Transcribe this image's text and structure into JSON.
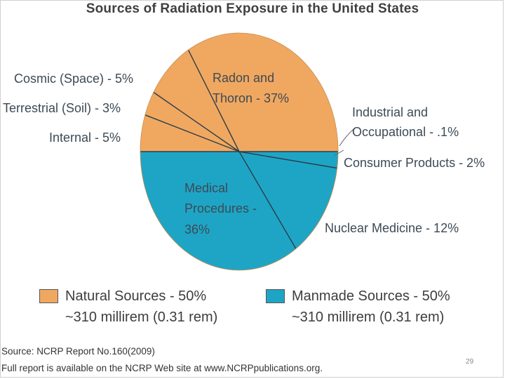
{
  "chart_data": {
    "type": "pie",
    "title": "Sources of Radiation Exposure in the United States",
    "slices": [
      {
        "label": "Radon and Thoron - 37%",
        "value": 37,
        "group": "natural"
      },
      {
        "label": "Cosmic (Space) - 5%",
        "value": 5,
        "group": "natural"
      },
      {
        "label": "Terrestrial (Soil) - 3%",
        "value": 3,
        "group": "natural"
      },
      {
        "label": "Internal - 5%",
        "value": 5,
        "group": "natural"
      },
      {
        "label": "Medical Procedures - 36%",
        "value": 36,
        "group": "manmade"
      },
      {
        "label": "Nuclear Medicine - 12%",
        "value": 12,
        "group": "manmade"
      },
      {
        "label": "Consumer Products - 2%",
        "value": 2,
        "group": "manmade"
      },
      {
        "label": "Industrial and Occupational - .1%",
        "value": 0.1,
        "group": "manmade"
      }
    ],
    "legend": [
      {
        "line1": "Natural Sources - 50%",
        "line2": "~310 millirem (0.31 rem)",
        "color": "#f0a860"
      },
      {
        "line1": "Manmade Sources - 50%",
        "line2": "~310 millirem (0.31 rem)",
        "color": "#1ea5c6"
      }
    ],
    "colors": {
      "natural": "#f0a860",
      "manmade": "#1ea5c6",
      "divider": "#2c3e4a"
    }
  },
  "labels": {
    "radon_line1": "Radon and",
    "radon_line2": "Thoron - 37%",
    "cosmic": "Cosmic (Space) - 5%",
    "terrestrial": "Terrestrial (Soil) - 3%",
    "internal": "Internal - 5%",
    "industrial_line1": "Industrial and",
    "industrial_line2": "Occupational - .1%",
    "consumer": "Consumer Products - 2%",
    "medical_line1": "Medical",
    "medical_line2": "Procedures -",
    "medical_line3": "36%",
    "nuclear": "Nuclear Medicine - 12%"
  },
  "source_line1": "Source: NCRP Report No.160(2009)",
  "source_line2": "Full report is available on the NCRP Web site at www.NCRPpublications.org.",
  "page_number": "29"
}
